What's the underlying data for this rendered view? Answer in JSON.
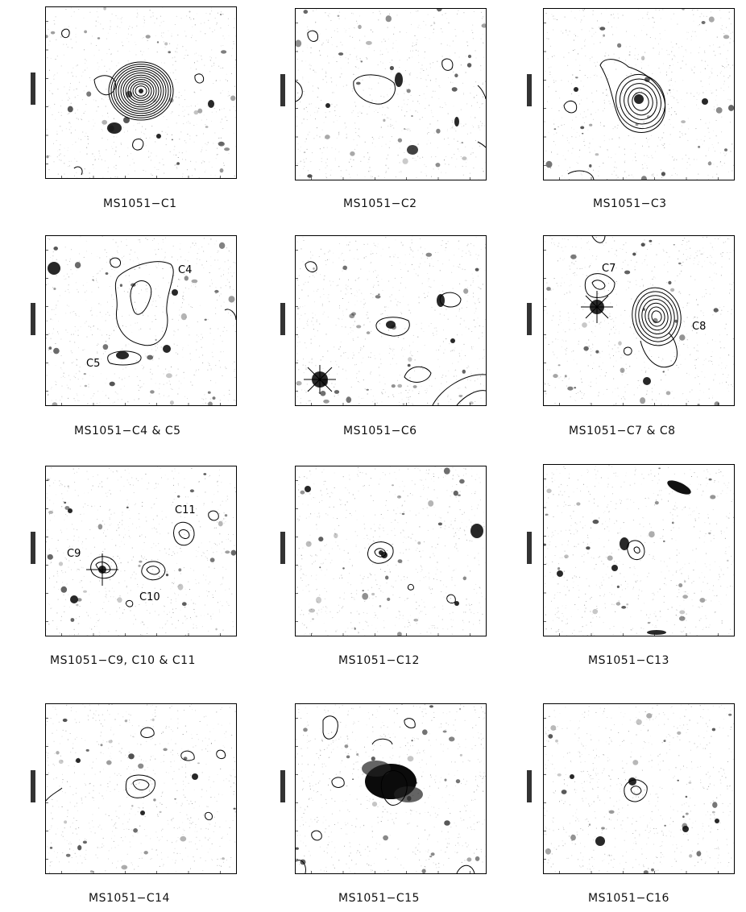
{
  "figure": {
    "panels": [
      {
        "id": "p1",
        "caption": "MS1051−C1",
        "labels": []
      },
      {
        "id": "p2",
        "caption": "MS1051−C2",
        "labels": []
      },
      {
        "id": "p3",
        "caption": "MS1051−C3",
        "labels": []
      },
      {
        "id": "p4",
        "caption": "MS1051−C4 & C5",
        "labels": [
          "C4",
          "C5"
        ]
      },
      {
        "id": "p5",
        "caption": "MS1051−C6",
        "labels": []
      },
      {
        "id": "p6",
        "caption": "MS1051−C7 & C8",
        "labels": [
          "C7",
          "C8"
        ]
      },
      {
        "id": "p7",
        "caption": "MS1051−C9, C10 & C11",
        "labels": [
          "C11",
          "C9",
          "C10"
        ]
      },
      {
        "id": "p8",
        "caption": "MS1051−C12",
        "labels": []
      },
      {
        "id": "p9",
        "caption": "MS1051−C13",
        "labels": []
      },
      {
        "id": "p10",
        "caption": "MS1051−C14",
        "labels": []
      },
      {
        "id": "p11",
        "caption": "MS1051−C15",
        "labels": []
      },
      {
        "id": "p12",
        "caption": "MS1051−C16",
        "labels": []
      }
    ]
  }
}
